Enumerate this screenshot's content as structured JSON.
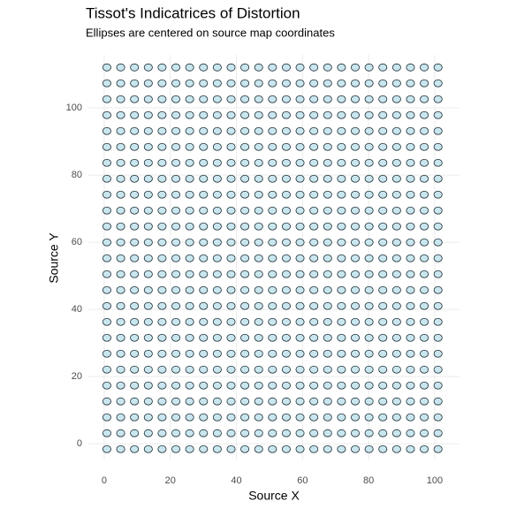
{
  "chart_data": {
    "type": "scatter",
    "title": "Tissot's Indicatrices of Distortion",
    "subtitle": "Ellipses are centered on source map coordinates",
    "xlabel": "Source X",
    "ylabel": "Source Y",
    "x": [
      0.8,
      4.98,
      9.15,
      13.33,
      17.5,
      21.68,
      25.85,
      30.03,
      34.2,
      38.38,
      42.55,
      46.73,
      50.9,
      55.08,
      59.25,
      63.43,
      67.6,
      71.78,
      75.95,
      80.13,
      84.3,
      88.48,
      92.65,
      96.83,
      101.0
    ],
    "y": [
      -1.6,
      3.14,
      7.87,
      12.61,
      17.34,
      22.08,
      26.81,
      31.55,
      36.28,
      41.02,
      45.75,
      50.49,
      55.22,
      59.96,
      64.69,
      69.43,
      74.16,
      78.9,
      83.63,
      88.37,
      93.1,
      97.84,
      102.57,
      107.31,
      112.04
    ],
    "xlim": [
      -4.8,
      107.5
    ],
    "ylim": [
      -4.7,
      115.8
    ],
    "xticks": [
      0,
      20,
      40,
      60,
      80,
      100
    ],
    "yticks": [
      0,
      20,
      40,
      60,
      80,
      100
    ],
    "grid": true,
    "color": "#c9e6ee",
    "edge_color": "#1a2a33"
  }
}
